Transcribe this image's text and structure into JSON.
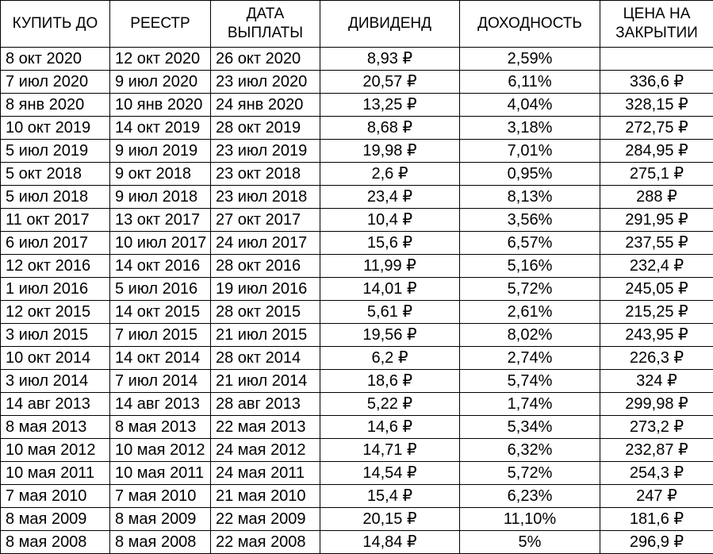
{
  "table": {
    "headers": [
      "КУПИТЬ ДО",
      "РЕЕСТР",
      "ДАТА\nВЫПЛАТЫ",
      "ДИВИДЕНД",
      "ДОХОДНОСТЬ",
      "ЦЕНА НА\nЗАКРЫТИИ"
    ],
    "rows": [
      [
        "8 окт 2020",
        "12 окт 2020",
        "26 окт 2020",
        "8,93 ₽",
        "2,59%",
        ""
      ],
      [
        "7 июл 2020",
        "9 июл 2020",
        "23 июл 2020",
        "20,57 ₽",
        "6,11%",
        "336,6 ₽"
      ],
      [
        "8 янв 2020",
        "10 янв 2020",
        "24 янв 2020",
        "13,25 ₽",
        "4,04%",
        "328,15 ₽"
      ],
      [
        "10 окт 2019",
        "14 окт 2019",
        "28 окт 2019",
        "8,68 ₽",
        "3,18%",
        "272,75 ₽"
      ],
      [
        "5 июл 2019",
        "9 июл 2019",
        "23 июл 2019",
        "19,98 ₽",
        "7,01%",
        "284,95 ₽"
      ],
      [
        "5 окт 2018",
        "9 окт 2018",
        "23 окт 2018",
        "2,6 ₽",
        "0,95%",
        "275,1 ₽"
      ],
      [
        "5 июл 2018",
        "9 июл 2018",
        "23 июл 2018",
        "23,4 ₽",
        "8,13%",
        "288 ₽"
      ],
      [
        "11 окт 2017",
        "13 окт 2017",
        "27 окт 2017",
        "10,4 ₽",
        "3,56%",
        "291,95 ₽"
      ],
      [
        "6 июл 2017",
        "10 июл 2017",
        "24 июл 2017",
        "15,6 ₽",
        "6,57%",
        "237,55 ₽"
      ],
      [
        "12 окт 2016",
        "14 окт 2016",
        "28 окт 2016",
        "11,99 ₽",
        "5,16%",
        "232,4 ₽"
      ],
      [
        "1 июл 2016",
        "5 июл 2016",
        "19 июл 2016",
        "14,01 ₽",
        "5,72%",
        "245,05 ₽"
      ],
      [
        "12 окт 2015",
        "14 окт 2015",
        "28 окт 2015",
        "5,61 ₽",
        "2,61%",
        "215,25 ₽"
      ],
      [
        "3 июл 2015",
        "7 июл 2015",
        "21 июл 2015",
        "19,56 ₽",
        "8,02%",
        "243,95 ₽"
      ],
      [
        "10 окт 2014",
        "14 окт 2014",
        "28 окт 2014",
        "6,2 ₽",
        "2,74%",
        "226,3 ₽"
      ],
      [
        "3 июл 2014",
        "7 июл 2014",
        "21 июл 2014",
        "18,6 ₽",
        "5,74%",
        "324 ₽"
      ],
      [
        "14 авг 2013",
        "14 авг 2013",
        "28 авг 2013",
        "5,22 ₽",
        "1,74%",
        "299,98 ₽"
      ],
      [
        "8 мая 2013",
        "8 мая 2013",
        "22 мая 2013",
        "14,6 ₽",
        "5,34%",
        "273,2 ₽"
      ],
      [
        "10 мая 2012",
        "10 мая 2012",
        "24 мая 2012",
        "14,71 ₽",
        "6,32%",
        "232,87 ₽"
      ],
      [
        "10 мая 2011",
        "10 мая 2011",
        "24 мая 2011",
        "14,54 ₽",
        "5,72%",
        "254,3 ₽"
      ],
      [
        "7 мая 2010",
        "7 мая 2010",
        "21 мая 2010",
        "15,4 ₽",
        "6,23%",
        "247 ₽"
      ],
      [
        "8 мая 2009",
        "8 мая 2009",
        "22 мая 2009",
        "20,15 ₽",
        "11,10%",
        "181,6 ₽"
      ],
      [
        "8 мая 2008",
        "8 мая 2008",
        "22 мая 2008",
        "14,84 ₽",
        "5%",
        "296,9 ₽"
      ]
    ]
  }
}
